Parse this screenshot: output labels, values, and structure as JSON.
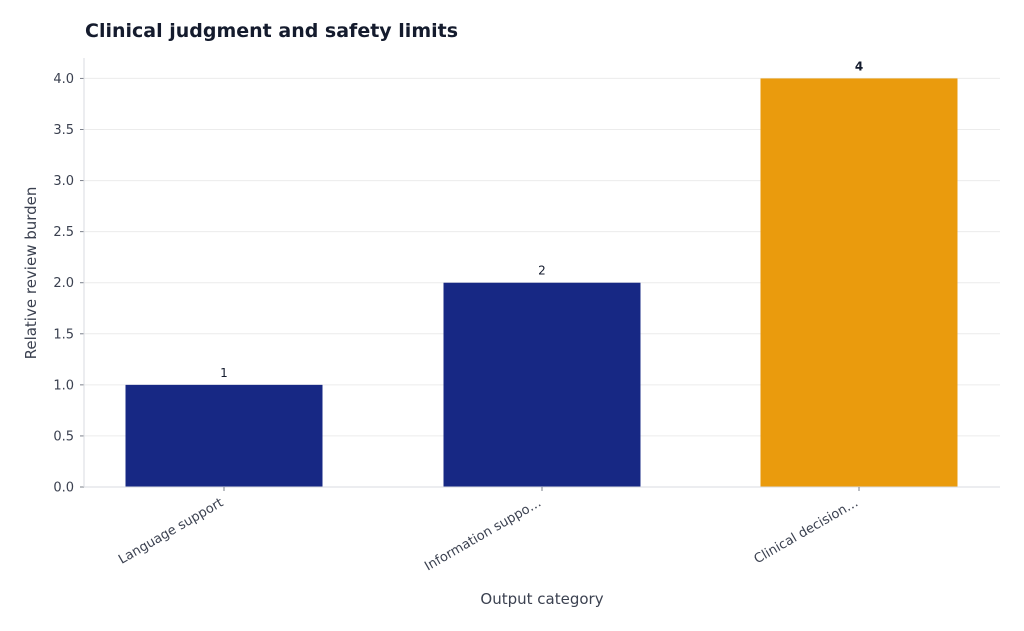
{
  "chart_data": {
    "type": "bar",
    "title": "Clinical judgment and safety limits",
    "xlabel": "Output category",
    "ylabel": "Relative review burden",
    "categories": [
      "Language support",
      "Information suppo…",
      "Clinical decision…"
    ],
    "values": [
      1,
      2,
      4
    ],
    "data_labels": [
      "1",
      "2",
      "4"
    ],
    "ylim": [
      0,
      4.2
    ],
    "yticks": [
      "0.0",
      "0.5",
      "1.0",
      "1.5",
      "2.0",
      "2.5",
      "3.0",
      "3.5",
      "4.0"
    ],
    "grid": true,
    "legend": "none",
    "colors": [
      "#172884",
      "#172884",
      "#ea9b0d"
    ],
    "label_colors": [
      "#141b2d",
      "#141b2d",
      "#ea9b0d"
    ]
  }
}
